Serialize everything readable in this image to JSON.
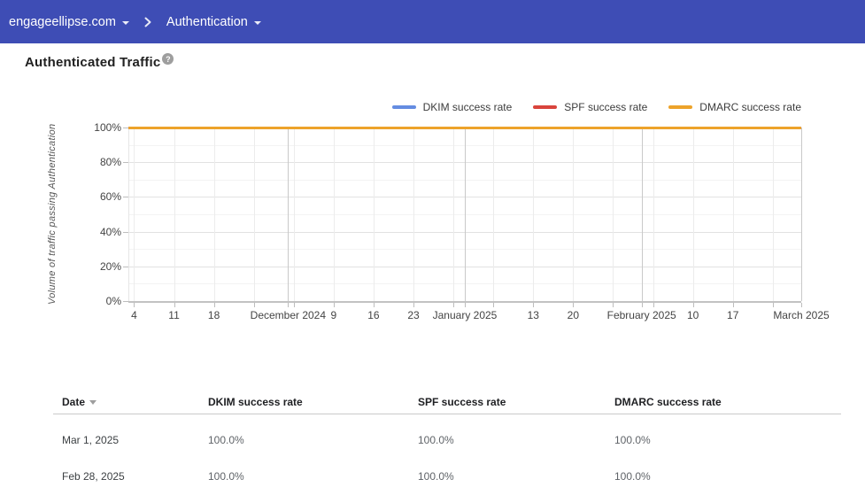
{
  "topbar": {
    "domain": "engageellipse.com",
    "section": "Authentication"
  },
  "page": {
    "title": "Authenticated Traffic",
    "help_glyph": "?"
  },
  "chart_data": {
    "type": "line",
    "title": "Authenticated Traffic",
    "ylabel": "Volume of traffic passing Authentication",
    "ylim": [
      0,
      100
    ],
    "y_unit": "%",
    "grid": true,
    "legend_position": "top-right",
    "x_range": [
      "Nov 3, 2024",
      "Mar 1, 2025"
    ],
    "y_ticks": [
      {
        "value": 0,
        "label": "0%"
      },
      {
        "value": 20,
        "label": "20%"
      },
      {
        "value": 40,
        "label": "40%"
      },
      {
        "value": 60,
        "label": "60%"
      },
      {
        "value": 80,
        "label": "80%"
      },
      {
        "value": 100,
        "label": "100%"
      }
    ],
    "y_minor": [
      10,
      30,
      50,
      70,
      90
    ],
    "x_ticks": [
      {
        "pos": 0.0085,
        "label": "4",
        "type": "week"
      },
      {
        "pos": 0.0678,
        "label": "11",
        "type": "week"
      },
      {
        "pos": 0.1271,
        "label": "18",
        "type": "week"
      },
      {
        "pos": 0.1864,
        "label": "",
        "type": "week"
      },
      {
        "pos": 0.2373,
        "label": "December 2024",
        "type": "month"
      },
      {
        "pos": 0.2458,
        "label": "",
        "type": "week"
      },
      {
        "pos": 0.3051,
        "label": "9",
        "type": "week"
      },
      {
        "pos": 0.3644,
        "label": "16",
        "type": "week"
      },
      {
        "pos": 0.4237,
        "label": "23",
        "type": "week"
      },
      {
        "pos": 0.4831,
        "label": "",
        "type": "week"
      },
      {
        "pos": 0.5,
        "label": "January 2025",
        "type": "month"
      },
      {
        "pos": 0.5424,
        "label": "",
        "type": "week"
      },
      {
        "pos": 0.6017,
        "label": "13",
        "type": "week"
      },
      {
        "pos": 0.661,
        "label": "20",
        "type": "week"
      },
      {
        "pos": 0.7203,
        "label": "",
        "type": "week"
      },
      {
        "pos": 0.7627,
        "label": "February 2025",
        "type": "month"
      },
      {
        "pos": 0.7797,
        "label": "",
        "type": "week"
      },
      {
        "pos": 0.839,
        "label": "10",
        "type": "week"
      },
      {
        "pos": 0.8983,
        "label": "17",
        "type": "week"
      },
      {
        "pos": 0.9576,
        "label": "",
        "type": "week"
      },
      {
        "pos": 1.0,
        "label": "March 2025",
        "type": "month"
      }
    ],
    "series": [
      {
        "name": "DKIM success rate",
        "color": "#648ce1",
        "x": [
          0,
          1
        ],
        "values": [
          100,
          100
        ]
      },
      {
        "name": "SPF success rate",
        "color": "#d9443c",
        "x": [
          0,
          1
        ],
        "values": [
          100,
          100
        ]
      },
      {
        "name": "DMARC success rate",
        "color": "#eda32b",
        "x": [
          0,
          1
        ],
        "values": [
          100,
          100
        ]
      }
    ]
  },
  "table": {
    "columns": [
      "Date",
      "DKIM success rate",
      "SPF success rate",
      "DMARC success rate"
    ],
    "sorted_by": "Date",
    "sort_direction": "desc",
    "rows": [
      [
        "Mar 1, 2025",
        "100.0%",
        "100.0%",
        "100.0%"
      ],
      [
        "Feb 28, 2025",
        "100.0%",
        "100.0%",
        "100.0%"
      ]
    ]
  }
}
